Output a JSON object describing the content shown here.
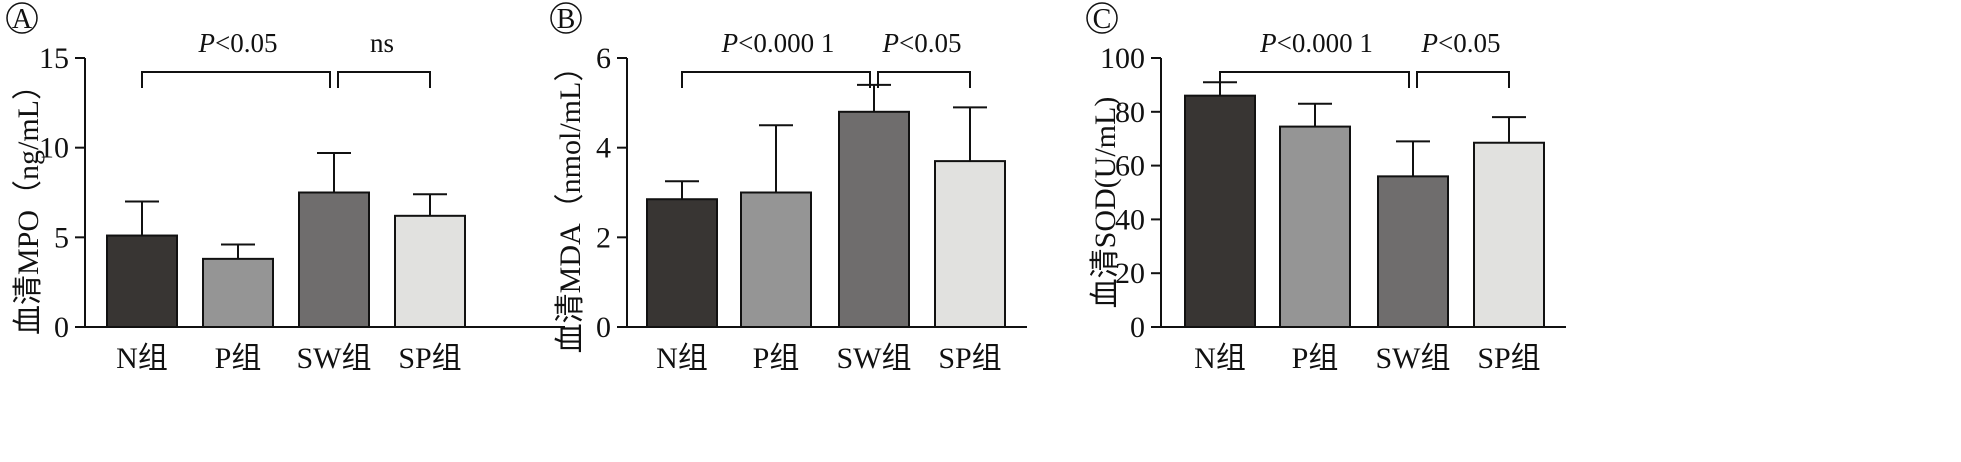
{
  "chart_data": [
    {
      "type": "bar",
      "panel_label": "A",
      "categories": [
        "N组",
        "P组",
        "SW组",
        "SP组"
      ],
      "values": [
        5.1,
        3.8,
        7.5,
        6.2
      ],
      "errors": [
        1.9,
        0.8,
        2.2,
        1.2
      ],
      "ylabel": "血清MPO（ng/mL）",
      "ylim": [
        0,
        15
      ],
      "yticks": [
        0,
        5,
        10,
        15
      ],
      "colors": [
        "#383533",
        "#959595",
        "#6f6d6d",
        "#e1e1df"
      ],
      "grid": false,
      "legend": "none",
      "significance": [
        {
          "from": 0,
          "to": 2,
          "label_parts": [
            "P",
            "<0.05"
          ]
        },
        {
          "from": 2,
          "to": 3,
          "label_parts": [
            "",
            "ns"
          ]
        }
      ]
    },
    {
      "type": "bar",
      "panel_label": "B",
      "categories": [
        "N组",
        "P组",
        "SW组",
        "SP组"
      ],
      "values": [
        2.85,
        3.0,
        4.8,
        3.7
      ],
      "errors": [
        0.4,
        1.5,
        0.6,
        1.2
      ],
      "ylabel": "血清MDA（nmol/mL）",
      "ylim": [
        0,
        6
      ],
      "yticks": [
        0,
        2,
        4,
        6
      ],
      "colors": [
        "#383533",
        "#959595",
        "#6f6d6d",
        "#e1e1df"
      ],
      "grid": false,
      "legend": "none",
      "significance": [
        {
          "from": 0,
          "to": 2,
          "label_parts": [
            "P",
            "<0.000 1"
          ]
        },
        {
          "from": 2,
          "to": 3,
          "label_parts": [
            "P",
            "<0.05"
          ]
        }
      ]
    },
    {
      "type": "bar",
      "panel_label": "C",
      "categories": [
        "N组",
        "P组",
        "SW组",
        "SP组"
      ],
      "values": [
        86,
        74.5,
        56,
        68.5
      ],
      "errors": [
        5,
        8.5,
        13,
        9.5
      ],
      "ylabel": "血清SOD(U/mL)",
      "ylim": [
        0,
        100
      ],
      "yticks": [
        0,
        20,
        40,
        60,
        80,
        100
      ],
      "colors": [
        "#383533",
        "#959595",
        "#6f6d6d",
        "#e1e1df"
      ],
      "grid": false,
      "legend": "none",
      "significance": [
        {
          "from": 0,
          "to": 2,
          "label_parts": [
            "P",
            "<0.000 1"
          ]
        },
        {
          "from": 2,
          "to": 3,
          "label_parts": [
            "P",
            "<0.05"
          ]
        }
      ]
    }
  ]
}
